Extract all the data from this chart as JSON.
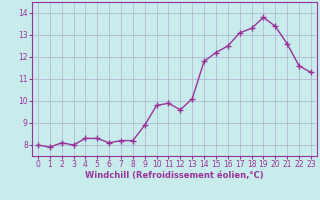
{
  "x": [
    0,
    1,
    2,
    3,
    4,
    5,
    6,
    7,
    8,
    9,
    10,
    11,
    12,
    13,
    14,
    15,
    16,
    17,
    18,
    19,
    20,
    21,
    22,
    23
  ],
  "y": [
    8.0,
    7.9,
    8.1,
    8.0,
    8.3,
    8.3,
    8.1,
    8.2,
    8.2,
    8.9,
    9.8,
    9.9,
    9.6,
    10.1,
    11.8,
    12.2,
    12.5,
    13.1,
    13.3,
    13.8,
    13.4,
    12.6,
    11.6,
    11.3
  ],
  "line_color": "#993399",
  "marker": "+",
  "marker_size": 4,
  "line_width": 1.0,
  "xlabel": "Windchill (Refroidissement éolien,°C)",
  "ylim": [
    7.5,
    14.5
  ],
  "xlim": [
    -0.5,
    23.5
  ],
  "yticks": [
    8,
    9,
    10,
    11,
    12,
    13,
    14
  ],
  "xticks": [
    0,
    1,
    2,
    3,
    4,
    5,
    6,
    7,
    8,
    9,
    10,
    11,
    12,
    13,
    14,
    15,
    16,
    17,
    18,
    19,
    20,
    21,
    22,
    23
  ],
  "background_color": "#c8ecec",
  "grid_color": "#aaaacc",
  "tick_label_color": "#993399",
  "xlabel_color": "#993399",
  "tick_fontsize": 5.5,
  "xlabel_fontsize": 6.0
}
